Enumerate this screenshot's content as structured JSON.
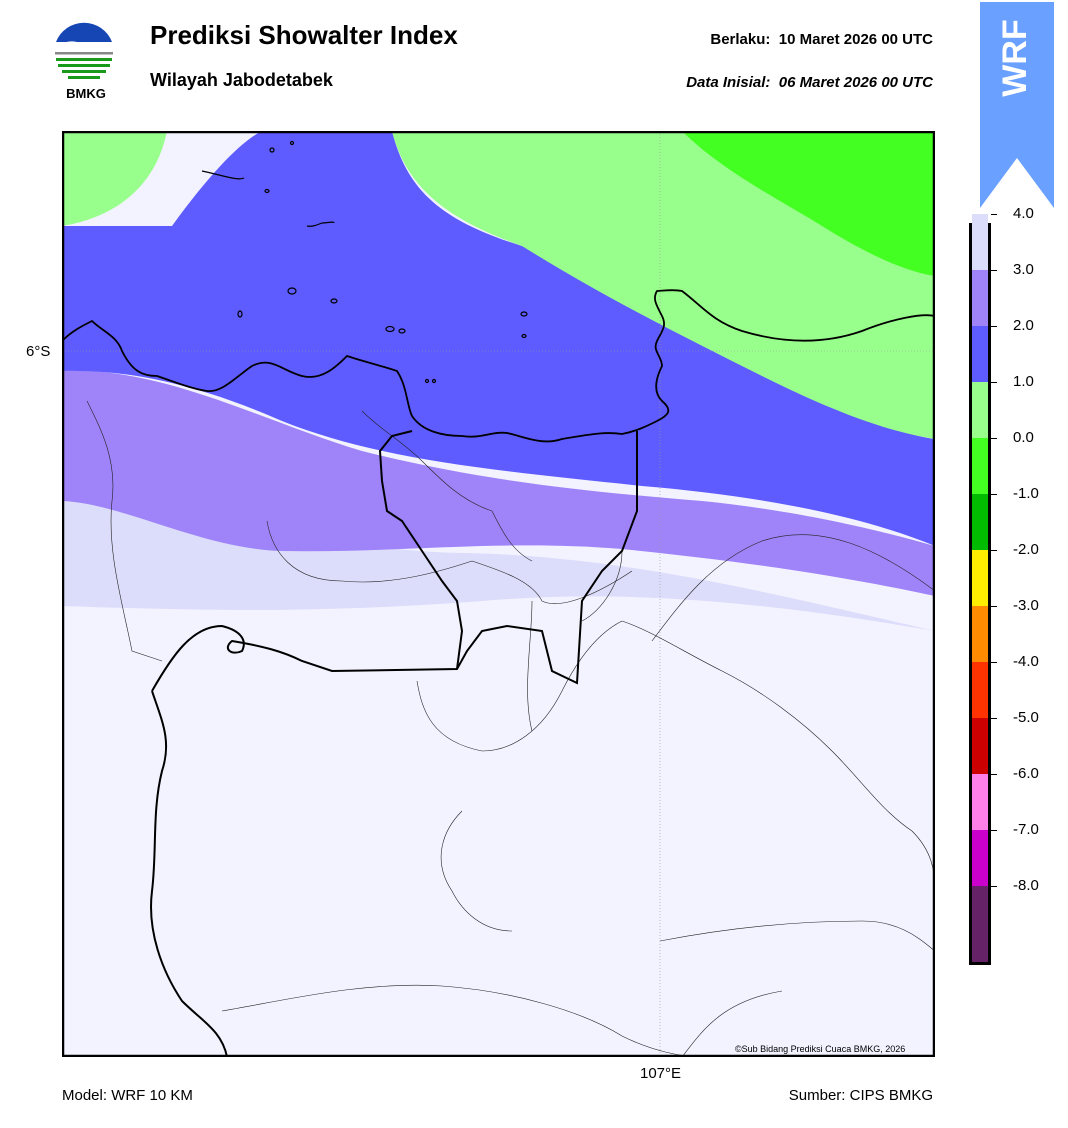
{
  "header": {
    "title": "Prediksi Showalter Index",
    "subtitle": "Wilayah Jabodetabek",
    "valid_label": "Berlaku:",
    "valid_value": "10 Maret 2026 00 UTC",
    "init_label": "Data Inisial:",
    "init_value": "06 Maret 2026 00 UTC",
    "logo_text": "BMKG",
    "badge_text": "WRF"
  },
  "map": {
    "lat_label": "6°S",
    "lon_label": "107°E",
    "credit": "©Sub Bidang Prediksi Cuaca BMKG, 2026"
  },
  "colorbar": {
    "ticks": [
      "4.0",
      "3.0",
      "2.0",
      "1.0",
      "0.0",
      "-1.0",
      "-2.0",
      "-3.0",
      "-4.0",
      "-5.0",
      "-6.0",
      "-7.0",
      "-8.0"
    ],
    "colors": [
      "#f3f2ff",
      "#dcdcfb",
      "#9e84f8",
      "#5e5cff",
      "#99ff8c",
      "#44ff22",
      "#00bb00",
      "#ffee00",
      "#ff8c00",
      "#ff3300",
      "#cc0000",
      "#ff80e8",
      "#cc00cc",
      "#662266"
    ]
  },
  "footer": {
    "model": "Model: WRF 10 KM",
    "source": "Sumber: CIPS BMKG"
  }
}
